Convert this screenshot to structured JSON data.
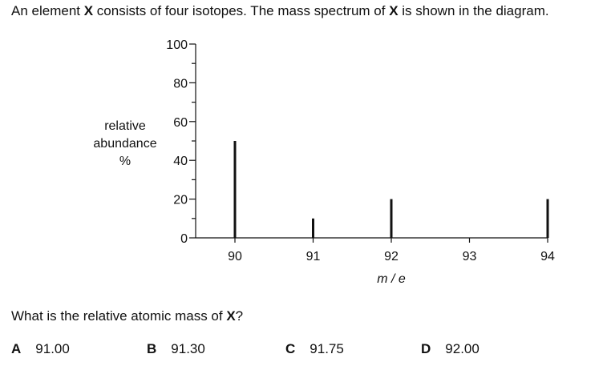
{
  "question": {
    "part1": "An element ",
    "symbol": "X",
    "part2": " consists of four isotopes. The mass spectrum of ",
    "part3": " is shown in the diagram."
  },
  "chart_data": {
    "type": "bar",
    "title": "",
    "xlabel": "m / e",
    "ylabel": [
      "relative",
      "abundance",
      "%"
    ],
    "x_ticks": [
      90,
      91,
      92,
      93,
      94
    ],
    "y_ticks": [
      0,
      20,
      40,
      60,
      80,
      100
    ],
    "xlim": [
      90,
      94
    ],
    "ylim": [
      0,
      100
    ],
    "grid": false,
    "peaks": [
      {
        "x": 90,
        "value": 50
      },
      {
        "x": 91,
        "value": 10
      },
      {
        "x": 92,
        "value": 20
      },
      {
        "x": 94,
        "value": 20
      }
    ]
  },
  "prompt": {
    "text": "What is the relative atomic mass of ",
    "symbol": "X",
    "end": "?"
  },
  "options": [
    {
      "letter": "A",
      "value": "91.00"
    },
    {
      "letter": "B",
      "value": "91.30"
    },
    {
      "letter": "C",
      "value": "91.75"
    },
    {
      "letter": "D",
      "value": "92.00"
    }
  ]
}
